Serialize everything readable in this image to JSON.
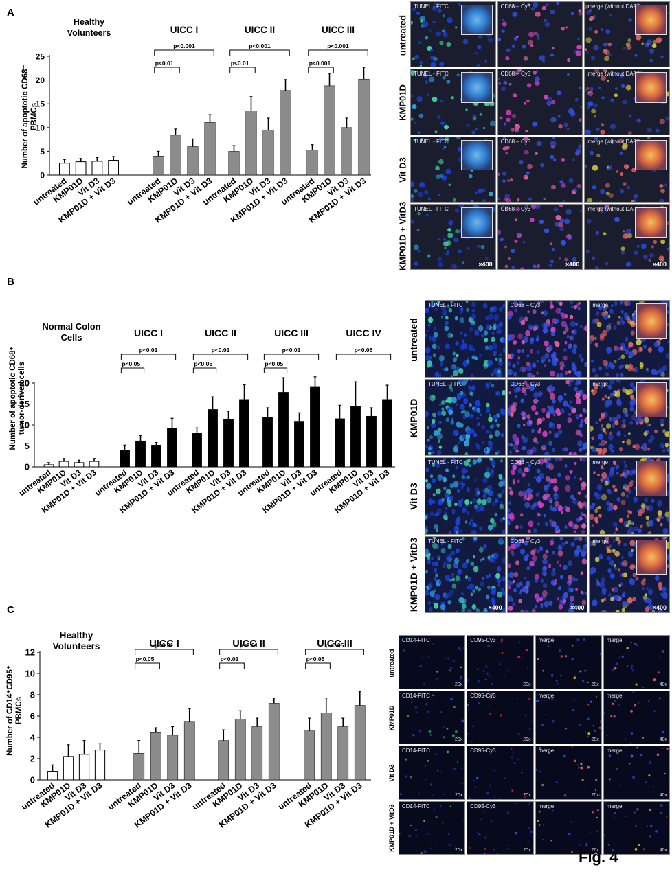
{
  "figure_label": "Fig. 4",
  "panels": [
    {
      "letter": "A"
    },
    {
      "letter": "B"
    },
    {
      "letter": "C"
    }
  ],
  "chart_data": [
    {
      "type": "bar",
      "panel": "A",
      "ylabel": "Number of apoptotic CD68⁺ PBMCs",
      "ylim": [
        0,
        25
      ],
      "yticks": [
        0,
        5,
        10,
        15,
        20,
        25
      ],
      "bar_color": "#8c8c8c",
      "control_bar_color": "#ffffff",
      "categories": [
        "untreated",
        "KMP01D",
        "Vit D3",
        "KMP01D + Vit D3"
      ],
      "groups": [
        {
          "name": "Healthy Volunteers",
          "values": [
            2.5,
            2.8,
            2.9,
            3.1
          ],
          "errors": [
            0.8,
            0.7,
            0.8,
            0.8
          ],
          "control": true,
          "brackets": []
        },
        {
          "name": "UICC I",
          "values": [
            4.0,
            8.4,
            6.0,
            11.1
          ],
          "errors": [
            1.0,
            1.3,
            1.6,
            1.6
          ],
          "brackets": [
            {
              "label": "p<0.01",
              "from": 0,
              "to": 1
            },
            {
              "label": "p<0.001",
              "from": 0,
              "to": 3
            }
          ]
        },
        {
          "name": "UICC II",
          "values": [
            5.0,
            13.5,
            9.5,
            17.8
          ],
          "errors": [
            1.2,
            3.0,
            2.5,
            2.3
          ],
          "brackets": [
            {
              "label": "p<0.01",
              "from": 0,
              "to": 1
            },
            {
              "label": "p<0.001",
              "from": 0,
              "to": 3
            }
          ]
        },
        {
          "name": "UICC III",
          "values": [
            5.3,
            18.8,
            10.0,
            20.2
          ],
          "errors": [
            1.1,
            2.6,
            2.0,
            2.5
          ],
          "brackets": [
            {
              "label": "p<0.001",
              "from": 0,
              "to": 1
            },
            {
              "label": "p<0.001",
              "from": 0,
              "to": 3
            }
          ]
        }
      ]
    },
    {
      "type": "bar",
      "panel": "B",
      "ylabel": "Number of apoptotic CD68⁺ tumor-derived cells",
      "ylim": [
        0,
        20
      ],
      "yticks": [
        0,
        5,
        10,
        15,
        20
      ],
      "bar_color": "#000000",
      "control_bar_color": "#ffffff",
      "categories": [
        "untreated",
        "KMP01D",
        "Vit D3",
        "KMP01D + Vit D3"
      ],
      "groups": [
        {
          "name": "Normal Colon Cells",
          "values": [
            0.5,
            1.3,
            1.0,
            1.3
          ],
          "errors": [
            0.5,
            0.7,
            0.6,
            0.7
          ],
          "control": true,
          "brackets": []
        },
        {
          "name": "UICC I",
          "values": [
            3.9,
            6.2,
            5.2,
            9.2
          ],
          "errors": [
            1.3,
            1.3,
            0.6,
            2.4
          ],
          "brackets": [
            {
              "label": "p<0.05",
              "from": 0,
              "to": 1
            },
            {
              "label": "p<0.01",
              "from": 0,
              "to": 3
            }
          ]
        },
        {
          "name": "UICC II",
          "values": [
            8.0,
            13.7,
            11.3,
            16.1
          ],
          "errors": [
            1.3,
            3.0,
            2.0,
            3.5
          ],
          "brackets": [
            {
              "label": "p<0.05",
              "from": 0,
              "to": 1
            },
            {
              "label": "p<0.01",
              "from": 0,
              "to": 3
            }
          ]
        },
        {
          "name": "UICC III",
          "values": [
            11.8,
            17.8,
            10.9,
            19.2
          ],
          "errors": [
            2.3,
            3.5,
            2.0,
            2.3
          ],
          "brackets": [
            {
              "label": "p<0.05",
              "from": 0,
              "to": 1
            },
            {
              "label": "p<0.01",
              "from": 0,
              "to": 3
            }
          ]
        },
        {
          "name": "UICC IV",
          "values": [
            11.5,
            14.5,
            12.1,
            16.1
          ],
          "errors": [
            3.2,
            5.8,
            2.0,
            3.4
          ],
          "brackets": [
            {
              "label": "p<0.05",
              "from": 0,
              "to": 3
            }
          ]
        }
      ]
    },
    {
      "type": "bar",
      "panel": "C",
      "ylabel": "Number of CD14⁺CD95⁺ PBMCs",
      "ylim": [
        0,
        12
      ],
      "yticks": [
        0,
        2,
        4,
        6,
        8,
        10,
        12
      ],
      "bar_color": "#8c8c8c",
      "control_bar_color": "#ffffff",
      "categories": [
        "untreated",
        "KMP01D",
        "Vit D3",
        "KMP01D + Vit D3"
      ],
      "groups": [
        {
          "name": "Healthy Volunteers",
          "values": [
            0.8,
            2.2,
            2.4,
            2.8
          ],
          "errors": [
            0.6,
            1.1,
            1.3,
            0.6
          ],
          "control": true,
          "brackets": []
        },
        {
          "name": "UICC I",
          "values": [
            2.5,
            4.5,
            4.2,
            5.5
          ],
          "errors": [
            1.2,
            0.4,
            0.8,
            1.2
          ],
          "brackets": [
            {
              "label": "p<0.05",
              "from": 0,
              "to": 1
            },
            {
              "label": "p<0.01",
              "from": 0,
              "to": 3
            }
          ]
        },
        {
          "name": "UICC II",
          "values": [
            3.7,
            5.7,
            5.0,
            7.2
          ],
          "errors": [
            1.0,
            0.8,
            0.8,
            0.5
          ],
          "brackets": [
            {
              "label": "p<0.01",
              "from": 0,
              "to": 1
            },
            {
              "label": "p<0.01",
              "from": 0,
              "to": 3
            }
          ]
        },
        {
          "name": "UICC III",
          "values": [
            4.6,
            6.3,
            5.0,
            7.0
          ],
          "errors": [
            1.2,
            1.4,
            0.8,
            1.3
          ],
          "brackets": [
            {
              "label": "p<0.05",
              "from": 0,
              "to": 1
            },
            {
              "label": "p<0.05",
              "from": 0,
              "to": 3
            }
          ]
        }
      ]
    }
  ],
  "micrographs": [
    {
      "panel": "A",
      "columns": [
        "TUNEL - FITC",
        "CD68 – Cy3",
        "merge (without DAPI)"
      ],
      "rows": [
        "untreated",
        "KMP01D",
        "Vit D3",
        "KMP01D + VitD3"
      ],
      "magnification": "×400",
      "style": "sparse"
    },
    {
      "panel": "B",
      "columns": [
        "TUNEL - FITC",
        "CD68 – Cy3",
        "merge"
      ],
      "rows": [
        "untreated",
        "KMP01D",
        "Vit D3",
        "KMP01D + VitD3"
      ],
      "magnification": "×400",
      "style": "dense"
    },
    {
      "panel": "C",
      "columns": [
        "CD14-FITC",
        "CD95-Cy3",
        "merge",
        "merge"
      ],
      "rows": [
        "untreated",
        "KMP01D",
        "Vit D3",
        "KMP01D + VitD3"
      ],
      "scale_labels": [
        "20x",
        "20x",
        "20x",
        "40x"
      ],
      "style": "dark"
    }
  ]
}
